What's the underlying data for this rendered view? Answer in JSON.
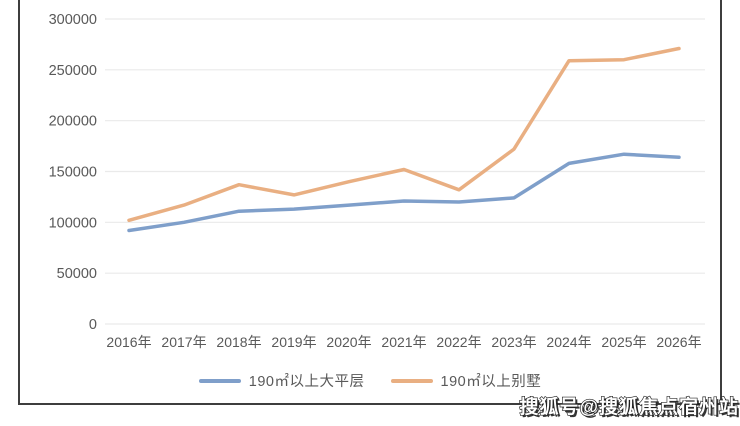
{
  "chart_data": {
    "type": "line",
    "categories": [
      "2016年",
      "2017年",
      "2018年",
      "2019年",
      "2020年",
      "2021年",
      "2022年",
      "2023年",
      "2024年",
      "2025年",
      "2026年"
    ],
    "series": [
      {
        "name": "190㎡以上大平层",
        "color": "#7f9fca",
        "values": [
          92000,
          100000,
          111000,
          113000,
          117000,
          121000,
          120000,
          124000,
          158000,
          167000,
          164000
        ]
      },
      {
        "name": "190㎡以上别墅",
        "color": "#e9af82",
        "values": [
          102000,
          117000,
          137000,
          127000,
          140000,
          152000,
          132000,
          172000,
          259000,
          260000,
          271000
        ]
      }
    ],
    "title": "",
    "xlabel": "",
    "ylabel": "",
    "ylim": [
      0,
      300000
    ],
    "yticks": [
      0,
      50000,
      100000,
      150000,
      200000,
      250000,
      300000
    ],
    "grid": "horizontal",
    "legend_position": "bottom",
    "grid_color": "#eaeaea",
    "axis_text_color": "#595959",
    "frame_border_color": "#3d3d3d"
  },
  "watermark": {
    "text": "搜狐号@搜狐焦点宿州站"
  }
}
